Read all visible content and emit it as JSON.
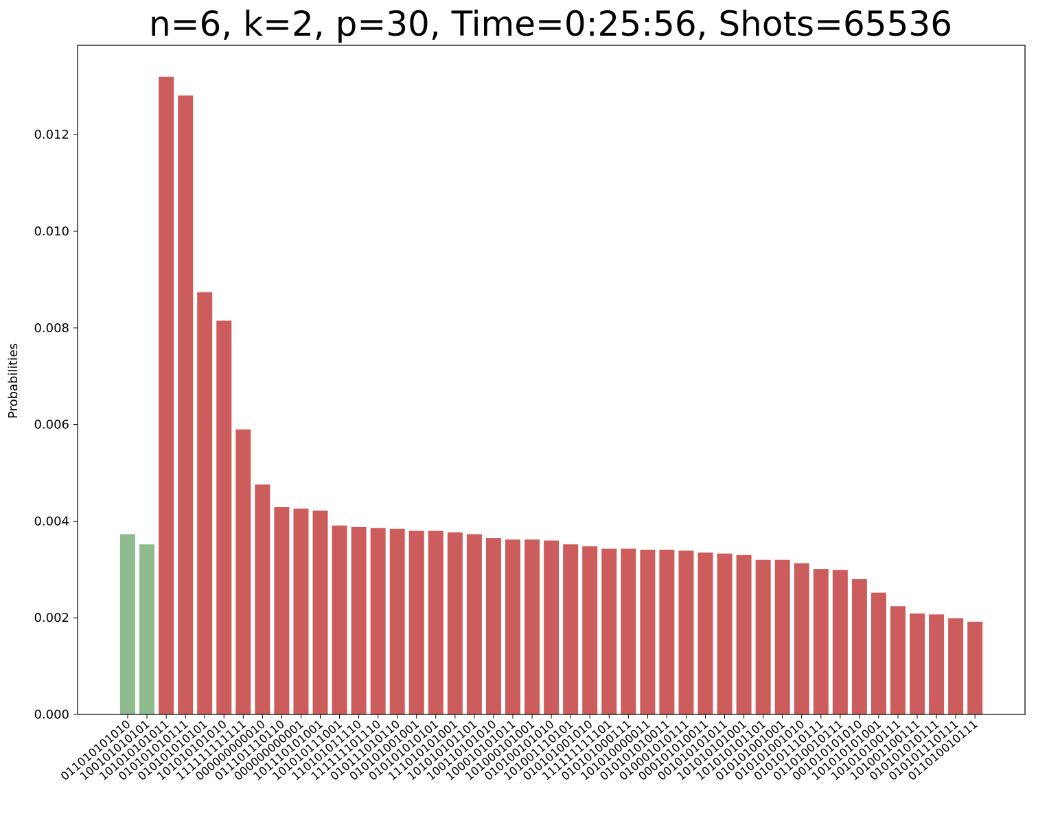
{
  "chart_data": {
    "type": "bar",
    "title": "n=6, k=2, p=30, Time=0:25:56, Shots=65536",
    "xlabel": "",
    "ylabel": "Probabilities",
    "ylim": [
      0,
      0.01385
    ],
    "yticks": [
      "0.000",
      "0.002",
      "0.004",
      "0.006",
      "0.008",
      "0.010",
      "0.012"
    ],
    "grid": false,
    "colors": {
      "solution": "#8fbc8f",
      "other": "#cd5c5c",
      "axis": "#000000"
    },
    "categories": [
      "011010101010",
      "100101010101",
      "101010101011",
      "010101010111",
      "010101010101",
      "101010101010",
      "111111111111",
      "000000000010",
      "011101110110",
      "000000000001",
      "101110101001",
      "101010111001",
      "110101011110",
      "111111101110",
      "010111010110",
      "010101001001",
      "010101010101",
      "111010101001",
      "101010101101",
      "100110101010",
      "100010101011",
      "101000101001",
      "010100101010",
      "101001110101",
      "010101001010",
      "111111111101",
      "010101000111",
      "101010000011",
      "010101010011",
      "010001010111",
      "000101010011",
      "001010101011",
      "101010101001",
      "101010101101",
      "010101001001",
      "010101001010",
      "010101110111",
      "011010010111"
    ],
    "values": [
      0.00373,
      0.00352,
      0.0132,
      0.01281,
      0.00874,
      0.00815,
      0.0059,
      0.00476,
      0.00429,
      0.00426,
      0.00422,
      0.00391,
      0.00388,
      0.00386,
      0.00384,
      0.0038,
      0.0038,
      0.00377,
      0.00373,
      0.00365,
      0.00362,
      0.00362,
      0.0036,
      0.00352,
      0.00348,
      0.00343,
      0.00343,
      0.00341,
      0.00341,
      0.00339,
      0.00335,
      0.00333,
      0.0033,
      0.0032,
      0.0032,
      0.00313,
      0.00301,
      0.00299
    ],
    "extra_values": [
      0.0028,
      0.00252,
      0.00224,
      0.00209,
      0.00207,
      0.00199,
      0.00192
    ],
    "extra_categories": [
      "001010101010",
      "101010101001",
      "101010100111",
      "101001100111",
      "010101010111",
      "010101110111",
      "011010010111"
    ],
    "bar_colors": [
      "solution",
      "solution"
    ]
  }
}
